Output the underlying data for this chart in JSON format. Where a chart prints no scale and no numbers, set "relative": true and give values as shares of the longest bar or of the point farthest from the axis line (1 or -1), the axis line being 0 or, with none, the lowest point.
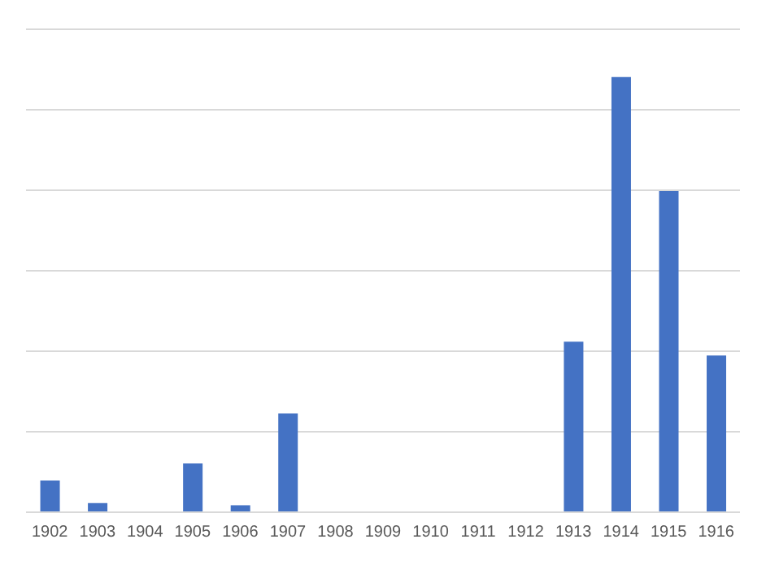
{
  "chart_data": {
    "type": "bar",
    "relative": true,
    "grid": "y",
    "categories": [
      "1902",
      "1903",
      "1904",
      "1905",
      "1906",
      "1907",
      "1908",
      "1909",
      "1910",
      "1911",
      "1912",
      "1913",
      "1914",
      "1915",
      "1916"
    ],
    "values": [
      0.073,
      0.021,
      0,
      0.112,
      0.016,
      0.227,
      0,
      0,
      0,
      0,
      0,
      0.392,
      1,
      0.738,
      0.36
    ],
    "color": "#4472c4"
  }
}
